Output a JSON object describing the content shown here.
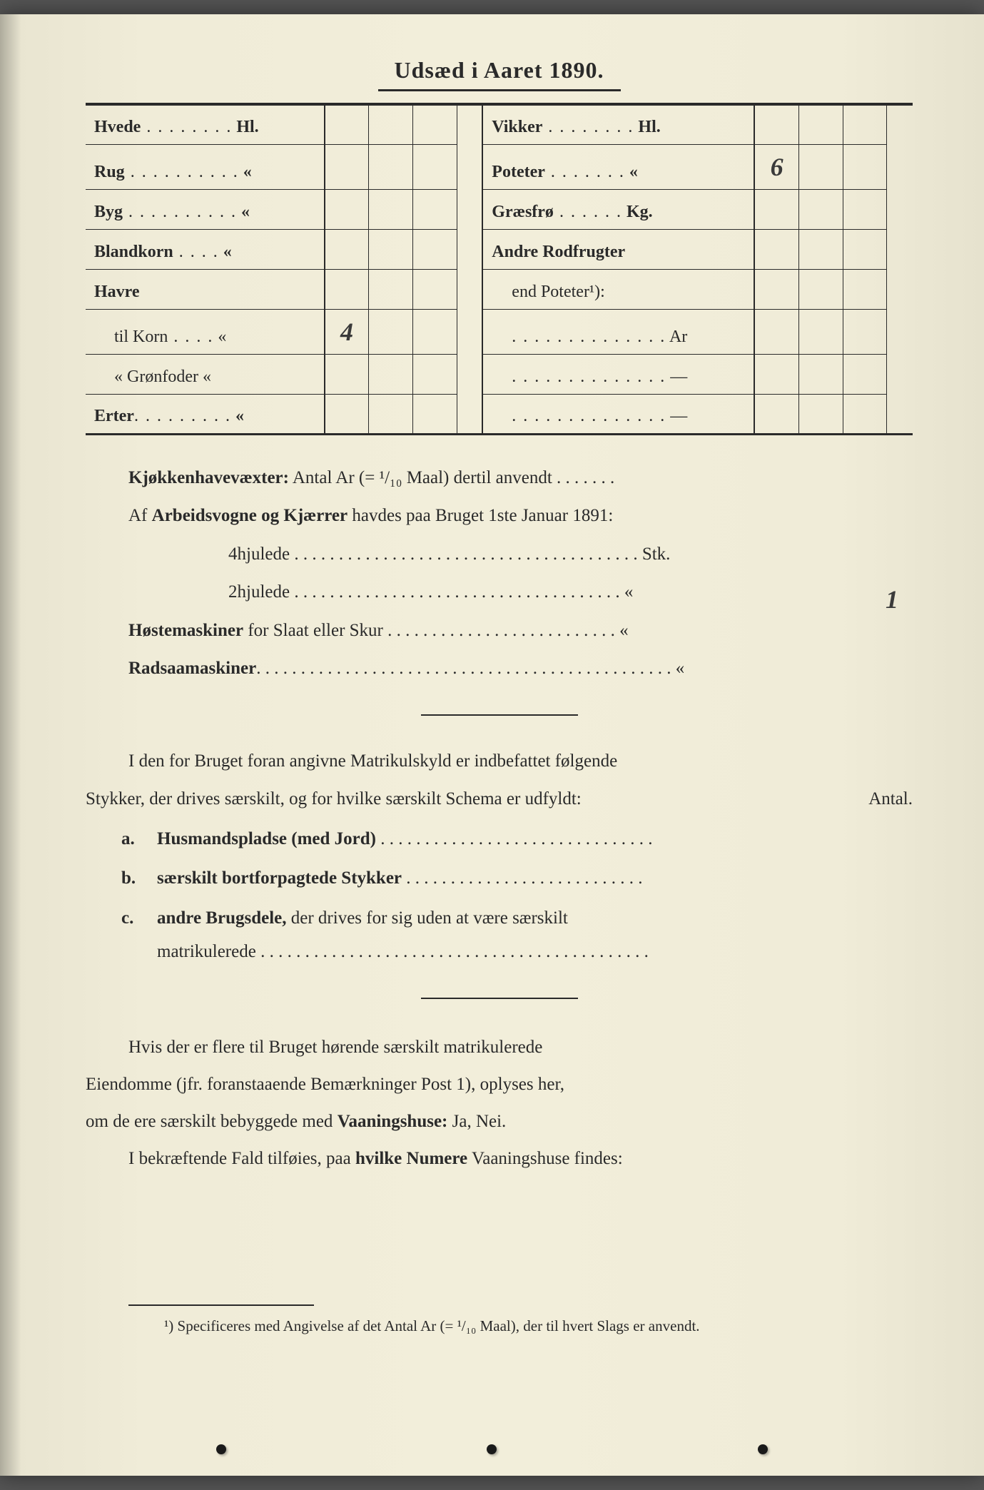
{
  "title": "Udsæd i Aaret 1890.",
  "table_left": [
    {
      "label": "Hvede",
      "dots": " . . . . . . . .",
      "unit": "Hl.",
      "value": ""
    },
    {
      "label": "Rug",
      "dots": " . . . . . . . . . .",
      "unit": "«",
      "value": ""
    },
    {
      "label": "Byg",
      "dots": " . . . . . . . . . .",
      "unit": "«",
      "value": ""
    },
    {
      "label": "Blandkorn",
      "dots": " . . . .",
      "unit": "«",
      "value": ""
    },
    {
      "label": "Havre",
      "dots": "",
      "unit": "",
      "value": ""
    },
    {
      "label": "til Korn",
      "dots": " . . . .",
      "unit": "«",
      "value": "4",
      "sub": true
    },
    {
      "label": "«  Grønfoder",
      "dots": "",
      "unit": "«",
      "value": "",
      "sub": true
    },
    {
      "label": "Erter",
      "dots": ". . . . . . . . .",
      "unit": "«",
      "value": ""
    }
  ],
  "table_right": [
    {
      "label": "Vikker",
      "dots": " . . . . . . . .",
      "unit": "Hl.",
      "value": ""
    },
    {
      "label": "Poteter",
      "dots": " . . . . . . .",
      "unit": "«",
      "value": "6"
    },
    {
      "label": "Græsfrø",
      "dots": " . . . . . .",
      "unit": "Kg.",
      "value": ""
    },
    {
      "label": "Andre Rodfrugter",
      "dots": "",
      "unit": "",
      "value": ""
    },
    {
      "label": "end Poteter¹):",
      "dots": "",
      "unit": "",
      "value": "",
      "sub": true
    },
    {
      "label": "",
      "dots": ". . . . . . . . . . . . . .",
      "unit": "Ar",
      "value": "",
      "sub": true
    },
    {
      "label": "",
      "dots": ". . . . . . . . . . . . . .",
      "unit": "—",
      "value": "",
      "sub": true
    },
    {
      "label": "",
      "dots": ". . . . . . . . . . . . . .",
      "unit": "—",
      "value": "",
      "sub": true
    }
  ],
  "lines": {
    "l1a": "Kjøkkenhavevæxter:",
    "l1b": " Antal Ar (= ¹/₁₀ Maal) dertil anvendt . . . . . . .",
    "l2a": "Af ",
    "l2b": "Arbeidsvogne og Kjærrer",
    "l2c": " havdes paa Bruget 1ste Januar 1891:",
    "l3": "4hjulede . . . . . . . . . . . . . . . . . . . . . . . . . . . . . . . . . . . . . . . Stk.",
    "l4": "2hjulede . . . . . . . . . . . . . . . . . . . . . . . . . . . . . . . . .  . . . .   «",
    "l4hand": "1",
    "l5a": "Høstemaskiner",
    "l5b": " for Slaat eller Skur . . . . . . . . . . . . . . . . . . . . . . . . . .   «",
    "l6a": "Radsaamaskiner",
    "l6b": ". . . . . . . . . . . . . . . . . . . . . . . . . . . . . . . . . . . . . . . . . . . . . . .   «",
    "para1a": "I den for Bruget foran angivne Matrikulskyld er indbefattet følgende",
    "para1b": "Stykker, der drives særskilt, og for hvilke særskilt Schema er udfyldt:",
    "antal": "Antal.",
    "item_a_marker": "a.",
    "item_a": "Husmandspladse (med Jord)",
    "item_a_dots": " . . . . . . . . . . . . . . . . . . . . . . . . . . . . . . .",
    "item_b_marker": "b.",
    "item_b": "særskilt bortforpagtede Stykker",
    "item_b_dots": " . . . . . . . . . . . . . . . . . . . . . . . . . . .",
    "item_c_marker": "c.",
    "item_c": "andre Brugsdele,",
    "item_c_rest": " der drives for sig uden at være særskilt",
    "item_c2": "matrikulerede . . . . . . . . . . . . . . . . . . . . . . . . . . . . . . . . . . . . . . . . . . . .",
    "para2a": "Hvis der er flere til Bruget hørende særskilt matrikulerede",
    "para2b": "Eiendomme (jfr. foranstaaende Bemærkninger Post 1), oplyses her,",
    "para2c": "om de ere særskilt bebyggede med ",
    "para2d": "Vaaningshuse:",
    "para2e": " Ja, Nei.",
    "para3a": "I bekræftende Fald tilføies, paa ",
    "para3b": "hvilke Numere",
    "para3c": " Vaaningshuse findes:",
    "footnote": "¹) Specificeres med Angivelse af det Antal Ar (= ¹/₁₀ Maal), der til hvert Slags er anvendt."
  }
}
